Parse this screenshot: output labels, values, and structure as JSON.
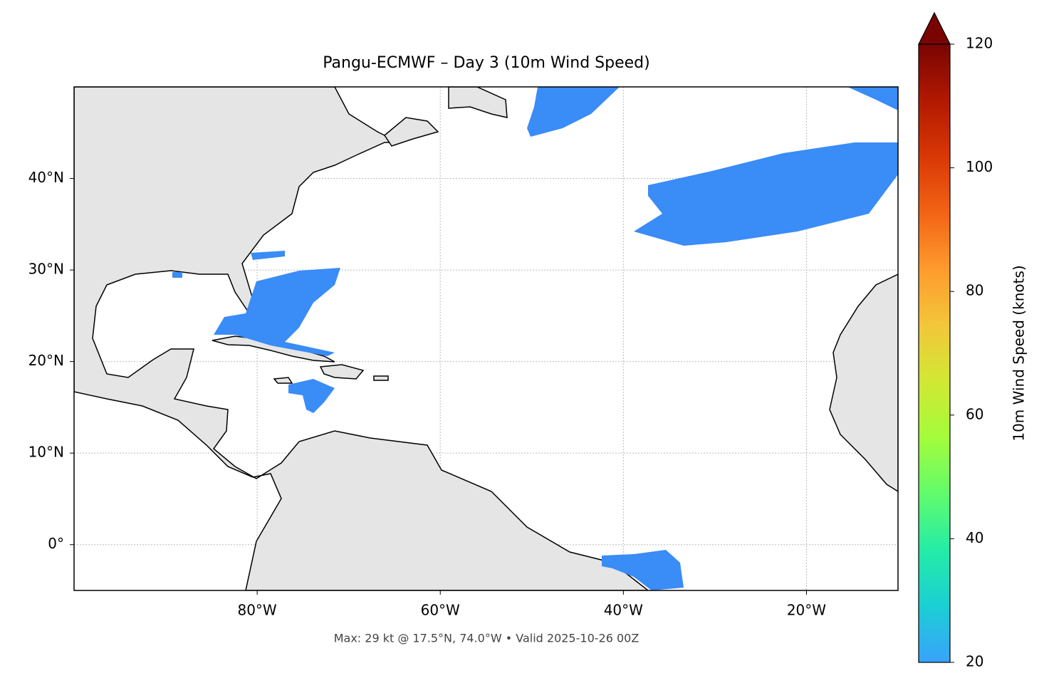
{
  "chart_data": {
    "type": "map",
    "title": "Pangu-ECMWF – Day 3 (10m Wind Speed)",
    "caption": "Max: 29 kt @ 17.5°N, 74.0°W • Valid 2025-10-26 00Z",
    "xlim": [
      -100,
      -10
    ],
    "ylim": [
      -5,
      50
    ],
    "xticks": [
      {
        "value": -80,
        "label": "80°W"
      },
      {
        "value": -60,
        "label": "60°W"
      },
      {
        "value": -40,
        "label": "40°W"
      },
      {
        "value": -20,
        "label": "20°W"
      }
    ],
    "yticks": [
      {
        "value": 0,
        "label": "0°"
      },
      {
        "value": 10,
        "label": "10°N"
      },
      {
        "value": 20,
        "label": "20°N"
      },
      {
        "value": 30,
        "label": "30°N"
      },
      {
        "value": 40,
        "label": "40°N"
      }
    ],
    "grid": true,
    "colorbar": {
      "label": "10m Wind Speed (knots)",
      "colormap": "turbo",
      "lim": [
        20,
        120
      ],
      "ticks": [
        20,
        40,
        60,
        80,
        100,
        120
      ],
      "extend": "max"
    }
  }
}
